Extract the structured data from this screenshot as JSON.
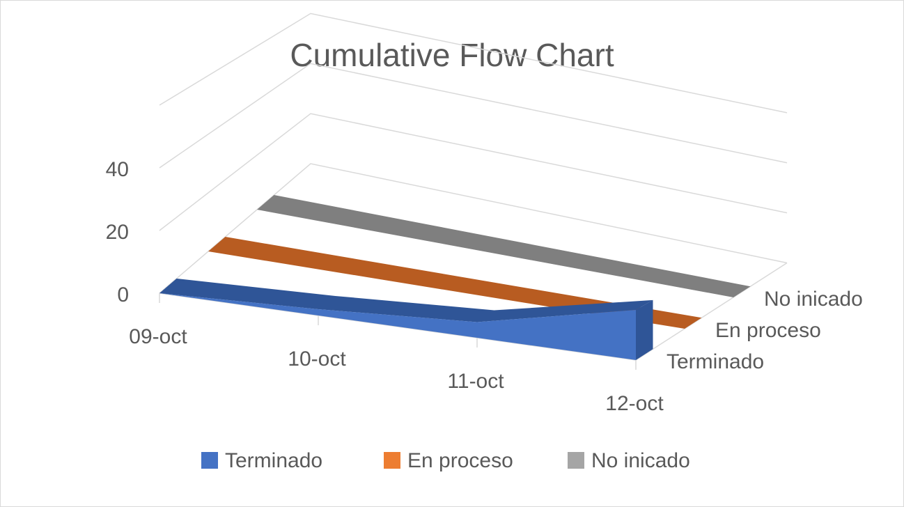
{
  "chart_data": {
    "type": "area",
    "three_d": true,
    "title": "Cumulative Flow Chart",
    "categories": [
      "09-oct",
      "10-oct",
      "11-oct",
      "12-oct"
    ],
    "y_ticks": [
      0,
      20,
      40
    ],
    "ylim": [
      0,
      40
    ],
    "gridlines": true,
    "legend_position": "bottom",
    "series": [
      {
        "name": "Terminado",
        "color": "#4472c4",
        "values": [
          0,
          2,
          5,
          16
        ]
      },
      {
        "name": "En proceso",
        "color": "#ed7d31",
        "values": [
          0,
          0,
          0,
          0
        ]
      },
      {
        "name": "No inicado",
        "color": "#a5a5a5",
        "values": [
          0,
          0,
          0,
          0
        ]
      }
    ]
  }
}
